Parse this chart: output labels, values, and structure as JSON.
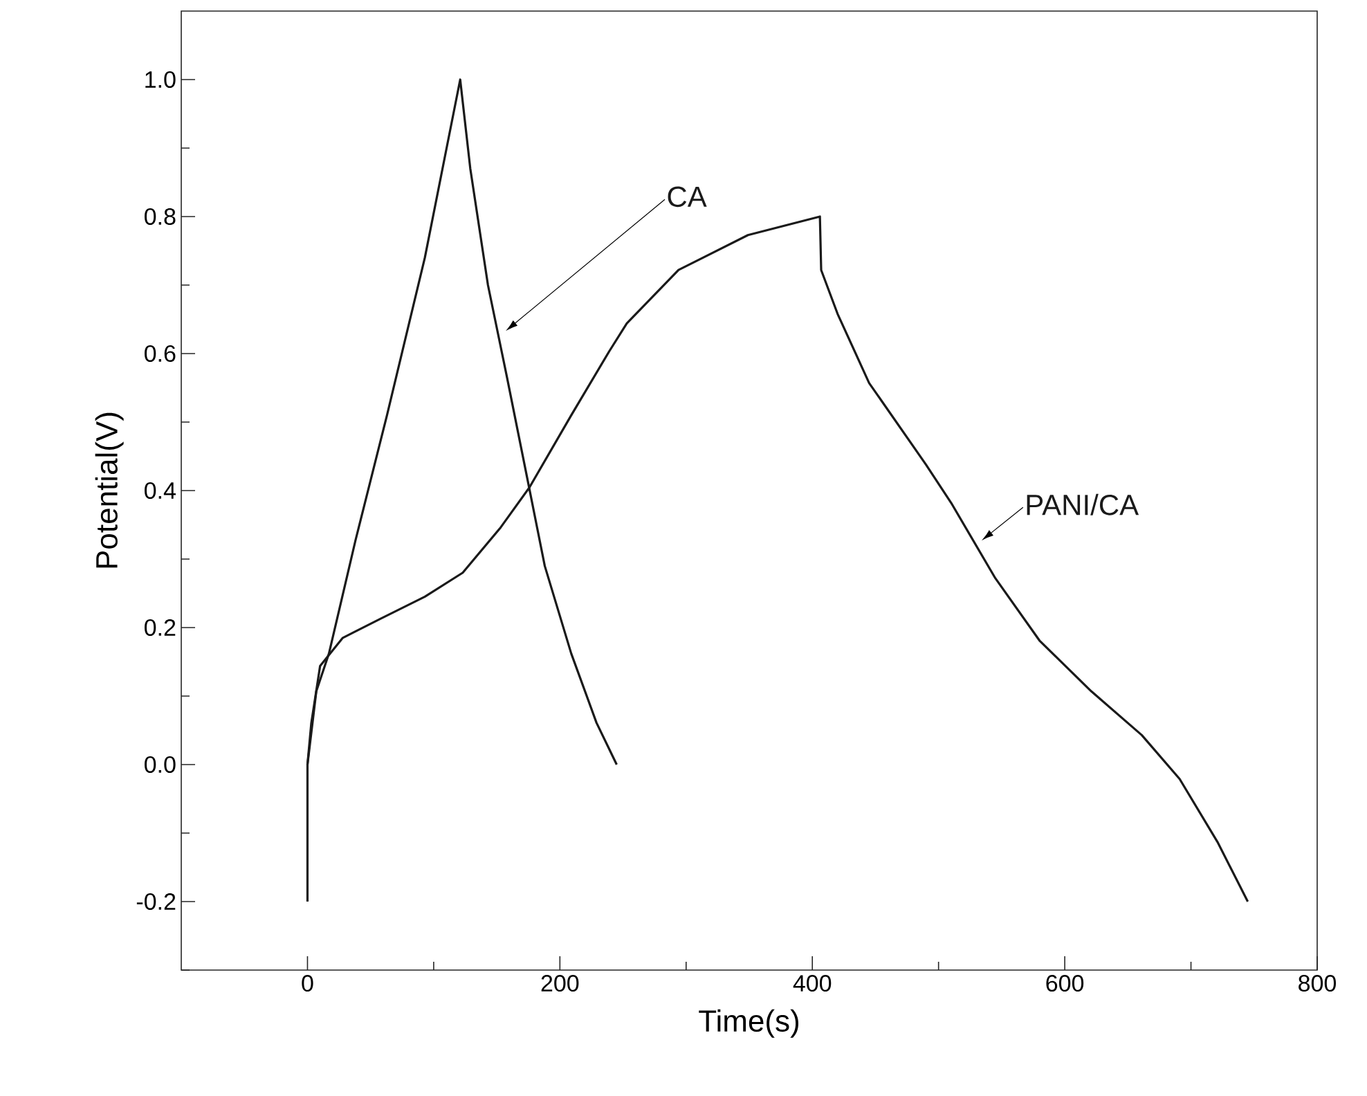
{
  "chart_data": {
    "type": "line",
    "xlabel": "Time(s)",
    "ylabel": "Potential(V)",
    "xlim": [
      -100,
      800
    ],
    "ylim": [
      -0.3,
      1.1
    ],
    "xticks": [
      0,
      {
        "value": 100,
        "label": null
      },
      200,
      {
        "value": 300,
        "label": null
      },
      400,
      {
        "value": 500,
        "label": null
      },
      600,
      {
        "value": 700,
        "label": null
      },
      800
    ],
    "yticks": [
      {
        "value": -0.3,
        "label": null
      },
      {
        "value": -0.2,
        "label": "-0.2"
      },
      {
        "value": -0.1,
        "label": null
      },
      {
        "value": 0,
        "label": "0.0"
      },
      {
        "value": 0.1,
        "label": null
      },
      {
        "value": 0.2,
        "label": "0.2"
      },
      {
        "value": 0.3,
        "label": null
      },
      {
        "value": 0.4,
        "label": "0.4"
      },
      {
        "value": 0.5,
        "label": null
      },
      {
        "value": 0.6,
        "label": "0.6"
      },
      {
        "value": 0.7,
        "label": null
      },
      {
        "value": 0.8,
        "label": "0.8"
      },
      {
        "value": 0.9,
        "label": null
      },
      {
        "value": 1.0,
        "label": "1.0"
      }
    ],
    "grid": false,
    "marker": "none",
    "line_style": "solid",
    "series": [
      {
        "name": "CA",
        "color": "#1a1a1a",
        "x": [
          0,
          7,
          17,
          38,
          63,
          93,
          121,
          129,
          143,
          158,
          175,
          188,
          209,
          229,
          245
        ],
        "values": [
          0,
          0.107,
          0.162,
          0.327,
          0.51,
          0.74,
          1.0,
          0.87,
          0.7,
          0.566,
          0.41,
          0.29,
          0.162,
          0.061,
          0
        ]
      },
      {
        "name": "PANI/CA",
        "color": "#1a1a1a",
        "x": [
          0,
          0,
          3,
          10,
          28,
          58,
          93,
          123,
          153,
          176,
          209,
          239,
          253,
          294,
          349,
          406,
          407,
          420,
          445,
          490,
          510,
          545,
          580,
          621,
          661,
          691,
          721,
          745
        ],
        "values": [
          -0.2,
          0,
          0.06,
          0.144,
          0.185,
          0.213,
          0.245,
          0.28,
          0.346,
          0.405,
          0.51,
          0.603,
          0.644,
          0.722,
          0.773,
          0.8,
          0.722,
          0.658,
          0.557,
          0.438,
          0.382,
          0.272,
          0.181,
          0.107,
          0.043,
          -0.021,
          -0.113,
          -0.2
        ]
      }
    ]
  }
}
